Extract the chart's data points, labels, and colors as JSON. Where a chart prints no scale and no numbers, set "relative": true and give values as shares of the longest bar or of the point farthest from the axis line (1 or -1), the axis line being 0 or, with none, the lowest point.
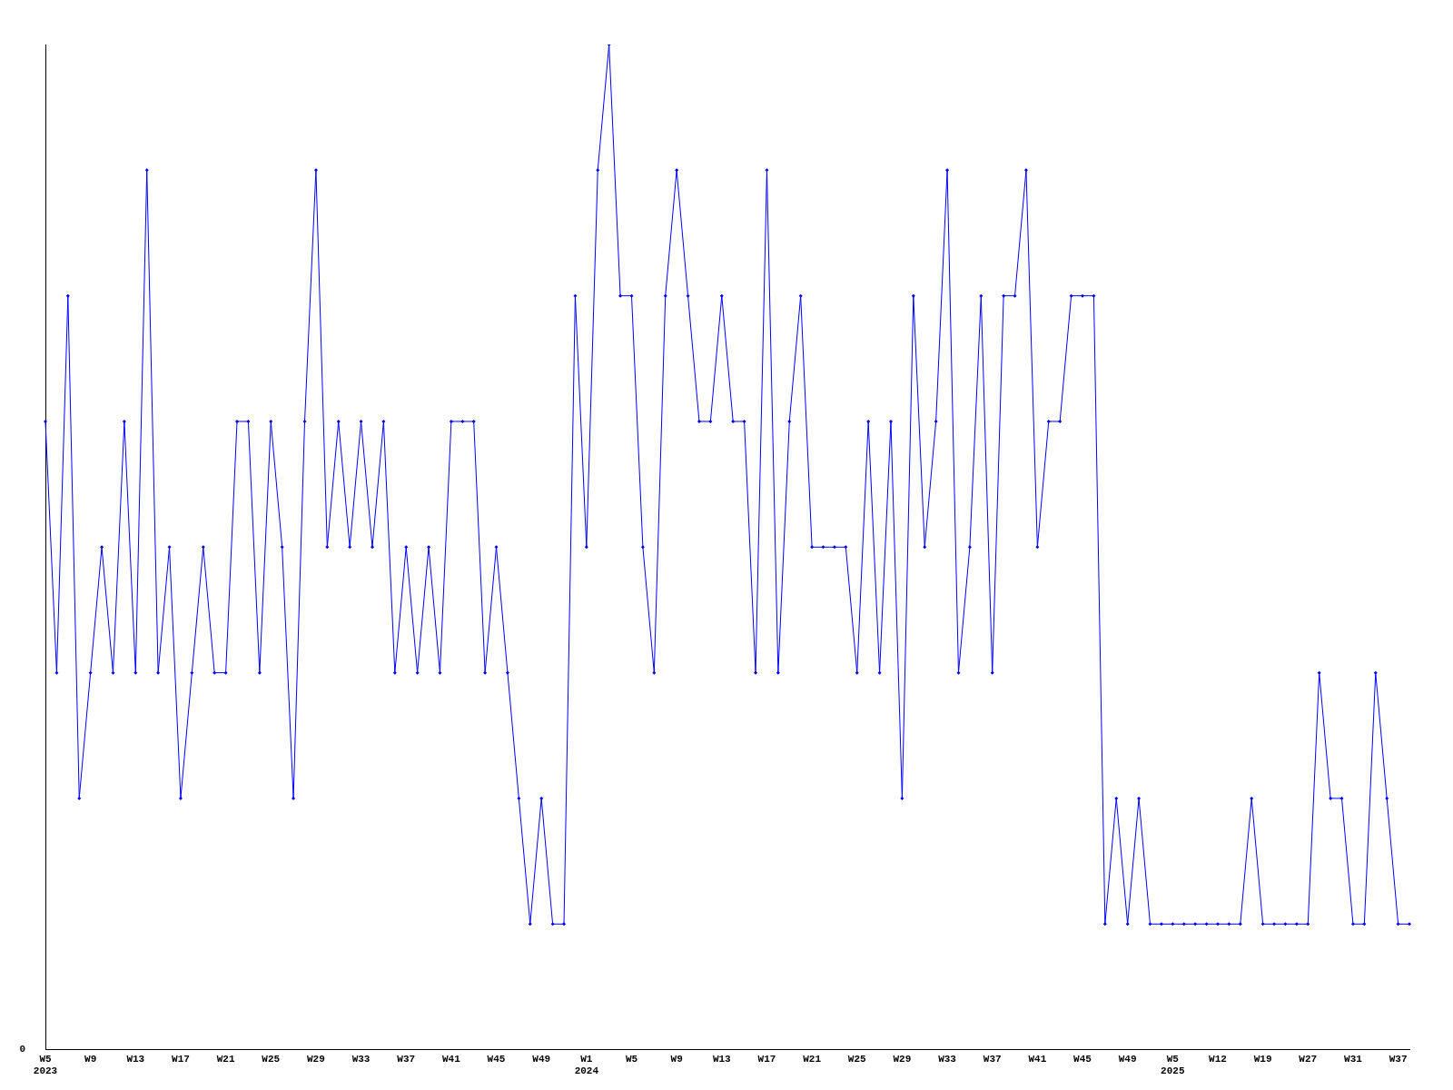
{
  "chart_data": {
    "type": "line",
    "relative": true,
    "marker": "diamond",
    "annotations": [
      "0"
    ],
    "categories": [
      "W5\n2023",
      null,
      null,
      null,
      "W9",
      null,
      null,
      null,
      "W13",
      null,
      null,
      null,
      "W17",
      null,
      null,
      null,
      "W21",
      null,
      null,
      null,
      "W25",
      null,
      null,
      null,
      "W29",
      null,
      null,
      null,
      "W33",
      null,
      null,
      null,
      "W37",
      null,
      null,
      null,
      "W41",
      null,
      null,
      null,
      "W45",
      null,
      null,
      null,
      "W49",
      null,
      null,
      null,
      "W1\n2024",
      null,
      null,
      null,
      "W5",
      null,
      null,
      null,
      "W9",
      null,
      null,
      null,
      "W13",
      null,
      null,
      null,
      "W17",
      null,
      null,
      null,
      "W21",
      null,
      null,
      null,
      "W25",
      null,
      null,
      null,
      "W29",
      null,
      null,
      null,
      "W33",
      null,
      null,
      null,
      "W37",
      null,
      null,
      null,
      "W41",
      null,
      null,
      null,
      "W45",
      null,
      null,
      null,
      "W49",
      null,
      null,
      null,
      "W5\n2025",
      null,
      null,
      null,
      "W12",
      null,
      null,
      null,
      "W19",
      null,
      null,
      null,
      "W27",
      null,
      null,
      null,
      "W31",
      null,
      null,
      null,
      "W37",
      null
    ],
    "series": [
      {
        "color": "#0000ff",
        "values": [
          0.625,
          0.375,
          0.75,
          0.25,
          0.375,
          0.5,
          0.375,
          0.625,
          0.375,
          0.875,
          0.375,
          0.5,
          0.25,
          0.375,
          0.5,
          0.375,
          0.375,
          0.625,
          0.625,
          0.375,
          0.625,
          0.5,
          0.25,
          0.625,
          0.875,
          0.5,
          0.625,
          0.5,
          0.625,
          0.5,
          0.625,
          0.375,
          0.5,
          0.375,
          0.5,
          0.375,
          0.625,
          0.625,
          0.625,
          0.375,
          0.5,
          0.375,
          0.25,
          0.125,
          0.25,
          0.125,
          0.125,
          0.75,
          0.5,
          0.875,
          1,
          0.75,
          0.75,
          0.5,
          0.375,
          0.75,
          0.875,
          0.75,
          0.625,
          0.625,
          0.75,
          0.625,
          0.625,
          0.375,
          0.875,
          0.375,
          0.625,
          0.75,
          0.5,
          0.5,
          0.5,
          0.5,
          0.375,
          0.625,
          0.375,
          0.625,
          0.25,
          0.75,
          0.5,
          0.625,
          0.875,
          0.375,
          0.5,
          0.75,
          0.375,
          0.75,
          0.75,
          0.875,
          0.5,
          0.625,
          0.625,
          0.75,
          0.75,
          0.75,
          0.125,
          0.25,
          0.125,
          0.25,
          0.125,
          0.125,
          0.125,
          0.125,
          0.125,
          0.125,
          0.125,
          0.125,
          0.125,
          0.25,
          0.125,
          0.125,
          0.125,
          0.125,
          0.125,
          0.375,
          0.25,
          0.25,
          0.125,
          0.125,
          0.375,
          0.25,
          0.125,
          0.125
        ]
      }
    ]
  }
}
